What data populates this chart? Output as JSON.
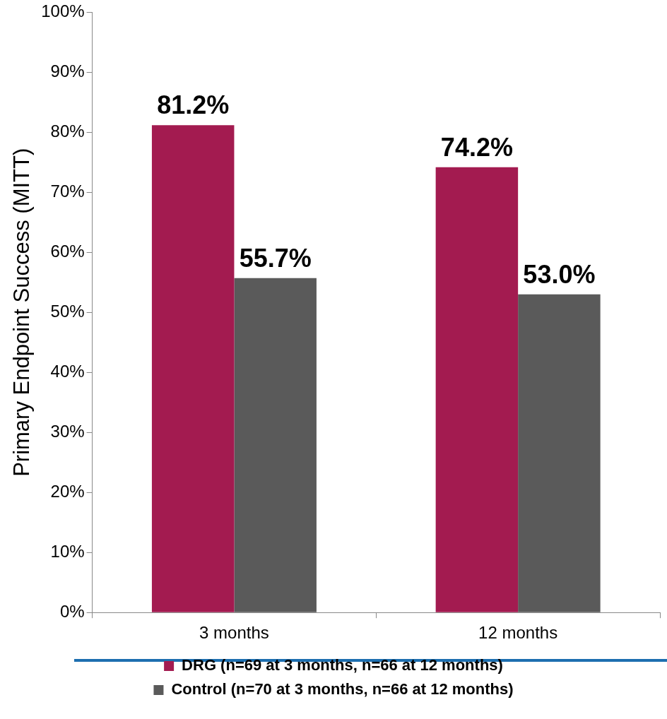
{
  "chart_data": {
    "type": "bar",
    "ylabel": "Primary Endpoint Success (MITT)",
    "categories": [
      "3 months",
      "12 months"
    ],
    "series": [
      {
        "name": "DRG (n=69 at 3 months, n=66 at 12 months)",
        "color": "#a31b50",
        "values": [
          81.2,
          74.2
        ]
      },
      {
        "name": "Control (n=70 at 3 months, n=66 at 12 months)",
        "color": "#5a5a5a",
        "values": [
          55.7,
          53.0
        ]
      }
    ],
    "value_labels": [
      [
        "81.2%",
        "74.2%"
      ],
      [
        "55.7%",
        "53.0%"
      ]
    ],
    "ylim": [
      0,
      100
    ],
    "yticks": [
      {
        "value": 0,
        "label": "0%"
      },
      {
        "value": 10,
        "label": "10%"
      },
      {
        "value": 20,
        "label": "20%"
      },
      {
        "value": 30,
        "label": "30%"
      },
      {
        "value": 40,
        "label": "40%"
      },
      {
        "value": 50,
        "label": "50%"
      },
      {
        "value": 60,
        "label": "60%"
      },
      {
        "value": 70,
        "label": "70%"
      },
      {
        "value": 80,
        "label": "80%"
      },
      {
        "value": 90,
        "label": "90%"
      },
      {
        "value": 100,
        "label": "100%"
      }
    ],
    "grid": false,
    "legend": "bottom"
  }
}
